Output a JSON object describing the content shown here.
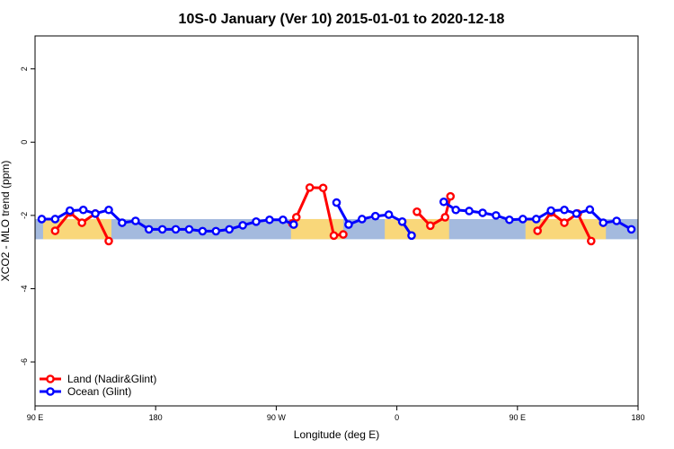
{
  "chart_data": {
    "type": "line",
    "title": "10S-0 January (Ver 10)   2015-01-01 to 2020-12-18",
    "xlabel": "Longitude (deg E)",
    "ylabel": "XCO2 - MLO trend (ppm)",
    "xlim": [
      90,
      540
    ],
    "ylim": [
      -7.2,
      2.9
    ],
    "grid": false,
    "legend_position": "bottom-left",
    "x_ticks": [
      {
        "value": 90,
        "label": "90 E"
      },
      {
        "value": 180,
        "label": "180"
      },
      {
        "value": 270,
        "label": "90 W"
      },
      {
        "value": 360,
        "label": "0"
      },
      {
        "value": 450,
        "label": "90 E"
      },
      {
        "value": 540,
        "label": "180"
      }
    ],
    "y_ticks": [
      {
        "value": 2,
        "label": "2"
      },
      {
        "value": 0,
        "label": "0"
      },
      {
        "value": -2,
        "label": "-2"
      },
      {
        "value": -4,
        "label": "-4"
      },
      {
        "value": -6,
        "label": "-6"
      }
    ],
    "band": {
      "y_min": -2.65,
      "y_max": -2.1,
      "ocean_color": "#a4bade",
      "land_color": "#f9d77a"
    },
    "land_regions": [
      {
        "x_min": 96,
        "x_max": 147
      },
      {
        "x_min": 281,
        "x_max": 320
      },
      {
        "x_min": 351,
        "x_max": 399
      },
      {
        "x_min": 456,
        "x_max": 516
      }
    ],
    "series": [
      {
        "name": "Land (Nadir&Glint)",
        "color": "#ff0000",
        "segments": [
          [
            [
              105,
              -2.42
            ],
            [
              116,
              -1.92
            ],
            [
              125,
              -2.2
            ],
            [
              135,
              -1.95
            ],
            [
              145,
              -2.7
            ]
          ],
          [
            [
              282,
              -2.22
            ],
            [
              285,
              -2.05
            ],
            [
              295,
              -1.24
            ],
            [
              305,
              -1.25
            ],
            [
              313,
              -2.55
            ],
            [
              320,
              -2.52
            ]
          ],
          [
            [
              375,
              -1.9
            ],
            [
              385,
              -2.28
            ],
            [
              396,
              -2.05
            ],
            [
              400,
              -1.48
            ]
          ],
          [
            [
              465,
              -2.42
            ],
            [
              475,
              -1.92
            ],
            [
              485,
              -2.2
            ],
            [
              495,
              -1.95
            ],
            [
              505,
              -2.7
            ]
          ]
        ]
      },
      {
        "name": "Ocean (Glint)",
        "color": "#0000ff",
        "segments": [
          [
            [
              95,
              -2.1
            ],
            [
              105,
              -2.1
            ],
            [
              116,
              -1.87
            ],
            [
              126,
              -1.85
            ],
            [
              135,
              -1.95
            ],
            [
              145,
              -1.85
            ],
            [
              155,
              -2.2
            ],
            [
              165,
              -2.15
            ],
            [
              175,
              -2.38
            ],
            [
              185,
              -2.38
            ],
            [
              195,
              -2.38
            ],
            [
              205,
              -2.38
            ],
            [
              215,
              -2.43
            ],
            [
              225,
              -2.43
            ],
            [
              235,
              -2.38
            ],
            [
              245,
              -2.27
            ],
            [
              255,
              -2.17
            ],
            [
              265,
              -2.12
            ],
            [
              275,
              -2.12
            ],
            [
              283,
              -2.25
            ]
          ],
          [
            [
              315,
              -1.65
            ],
            [
              324,
              -2.25
            ],
            [
              334,
              -2.1
            ],
            [
              344,
              -2.02
            ],
            [
              354,
              -1.98
            ],
            [
              364,
              -2.17
            ],
            [
              371,
              -2.55
            ]
          ],
          [
            [
              395,
              -1.63
            ],
            [
              404,
              -1.85
            ],
            [
              414,
              -1.88
            ],
            [
              424,
              -1.93
            ],
            [
              434,
              -2.0
            ],
            [
              444,
              -2.12
            ],
            [
              454,
              -2.1
            ],
            [
              464,
              -2.1
            ],
            [
              475,
              -1.87
            ],
            [
              485,
              -1.85
            ],
            [
              494,
              -1.95
            ],
            [
              504,
              -1.84
            ],
            [
              514,
              -2.2
            ],
            [
              524,
              -2.15
            ],
            [
              535,
              -2.38
            ]
          ]
        ]
      }
    ]
  }
}
